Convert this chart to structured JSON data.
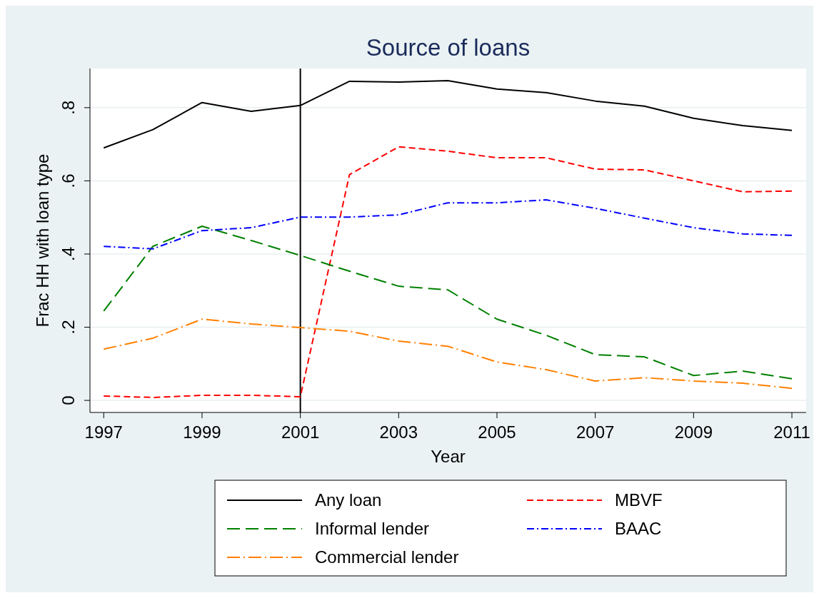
{
  "chart_data": {
    "type": "line",
    "title": "Source of loans",
    "xlabel": "Year",
    "ylabel": "Frac HH with loan type",
    "x": [
      1997,
      1998,
      1999,
      2000,
      2001,
      2002,
      2003,
      2004,
      2005,
      2006,
      2007,
      2008,
      2009,
      2010,
      2011
    ],
    "xlim": [
      1996.72,
      2011.29
    ],
    "xticks": [
      1997,
      1999,
      2001,
      2003,
      2005,
      2007,
      2009,
      2011
    ],
    "ylim": [
      -0.033,
      0.907
    ],
    "yticks": [
      {
        "value": 0,
        "label": "0"
      },
      {
        "value": 0.2,
        "label": ".2"
      },
      {
        "value": 0.4,
        "label": ".4"
      },
      {
        "value": 0.6,
        "label": ".6"
      },
      {
        "value": 0.8,
        "label": ".8"
      }
    ],
    "grid": "y",
    "legend": "bottom",
    "marker": "none",
    "ref_lines": [
      {
        "axis": "x",
        "value": 2001,
        "color": "#000000"
      }
    ],
    "series": [
      {
        "name": "Any loan",
        "color": "#000000",
        "line_style": "solid",
        "values": [
          0.69,
          0.74,
          0.814,
          0.79,
          0.806,
          0.872,
          0.87,
          0.874,
          0.851,
          0.841,
          0.818,
          0.804,
          0.771,
          0.751,
          0.738
        ]
      },
      {
        "name": "MBVF",
        "color": "#ff0000",
        "line_style": "dashed",
        "values": [
          0.012,
          0.008,
          0.014,
          0.014,
          0.01,
          0.617,
          0.693,
          0.681,
          0.663,
          0.663,
          0.632,
          0.63,
          0.6,
          0.57,
          0.572
        ]
      },
      {
        "name": "Informal lender",
        "color": "#008000",
        "line_style": "longdash",
        "values": [
          0.244,
          0.421,
          0.476,
          0.437,
          0.396,
          0.353,
          0.312,
          0.302,
          0.222,
          0.178,
          0.125,
          0.119,
          0.068,
          0.08,
          0.059
        ]
      },
      {
        "name": "BAAC",
        "color": "#0000ff",
        "line_style": "dashdot",
        "values": [
          0.421,
          0.414,
          0.464,
          0.472,
          0.501,
          0.501,
          0.507,
          0.54,
          0.54,
          0.548,
          0.525,
          0.498,
          0.472,
          0.455,
          0.451
        ]
      },
      {
        "name": "Commercial lender",
        "color": "#ff8000",
        "line_style": "longdashdot",
        "values": [
          0.14,
          0.17,
          0.222,
          0.209,
          0.199,
          0.189,
          0.162,
          0.148,
          0.105,
          0.084,
          0.053,
          0.062,
          0.053,
          0.047,
          0.033
        ]
      }
    ]
  }
}
